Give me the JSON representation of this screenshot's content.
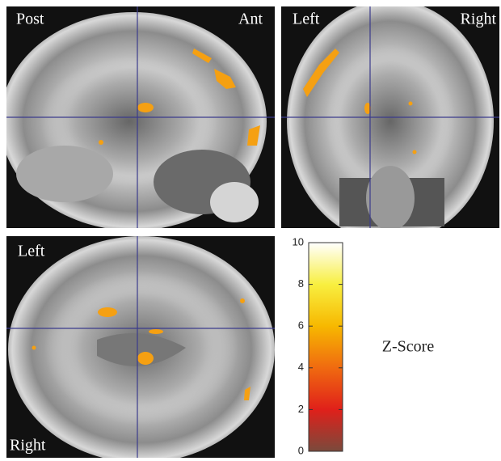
{
  "panels": [
    {
      "labels": [
        "Post",
        "Ant"
      ]
    },
    {
      "labels": [
        "Left",
        "Right"
      ]
    },
    {
      "labels": [
        "Left",
        "Right"
      ]
    }
  ],
  "colorbar": {
    "label": "Z-Score",
    "range": [
      0,
      10
    ],
    "ticks": [
      0,
      2,
      4,
      6,
      8,
      10
    ]
  }
}
